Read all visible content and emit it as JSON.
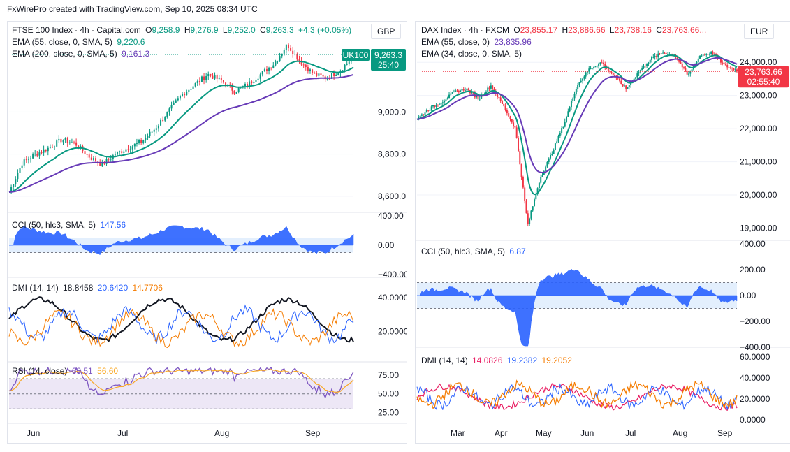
{
  "header": {
    "text": "FxWirePro created with TradingView.com, Sep 10, 2025 08:34 UTC"
  },
  "ftse": {
    "symbol": "FTSE 100 Index · 4h · Capital.com",
    "o_label": "O",
    "o": "9,258.9",
    "h_label": "H",
    "h": "9,276.9",
    "l_label": "L",
    "l": "9,252.0",
    "c_label": "C",
    "c": "9,263.3",
    "chg": "+4.3 (+0.05%)",
    "ema55_label": "EMA (55, close, 0, SMA, 5)",
    "ema55_val": "9,220.6",
    "ema200_label": "EMA (200, close, 0, SMA, 5)",
    "ema200_val": "9,161.3",
    "currency": "GBP",
    "tag_symbol": "UK100",
    "tag_price": "9,263.3",
    "tag_time": "25:40",
    "price_ticks": [
      "9,000.0",
      "8,800.0",
      "8,600.0"
    ],
    "cci_label": "CCI (50, hlc3, SMA, 5)",
    "cci_val": "147.56",
    "cci_ticks": [
      "400.00",
      "0.00",
      "−400.00"
    ],
    "dmi_label": "DMI (14, 14)",
    "dmi_v1": "18.8458",
    "dmi_v2": "20.6420",
    "dmi_v3": "14.7706",
    "dmi_ticks": [
      "40.0000",
      "20.0000"
    ],
    "rsi_label": "RSI (14, close)",
    "rsi_v1": "63.51",
    "rsi_v2": "56.60",
    "rsi_ticks": [
      "75.00",
      "50.00",
      "25.00"
    ],
    "months": [
      "Jun",
      "Jul",
      "Aug",
      "Sep"
    ]
  },
  "dax": {
    "symbol": "DAX Index · 4h · FXCM",
    "o_label": "O",
    "o": "23,855.17",
    "h_label": "H",
    "h": "23,886.66",
    "l_label": "L",
    "l": "23,738.16",
    "c_label": "C",
    "c": "23,763.66...",
    "ema55_label": "EMA (55, close, 0)",
    "ema55_val": "23,835.96",
    "ema34_label": "EMA (34, close, 0, SMA, 5)",
    "currency": "EUR",
    "tag_price": "23,763.66",
    "tag_time": "02:55:40",
    "price_ticks": [
      "24,000.00",
      "23,000.00",
      "22,000.00",
      "21,000.00",
      "20,000.00",
      "19,000.00"
    ],
    "cci_label": "CCI (50, hlc3, SMA, 5)",
    "cci_val": "6.87",
    "cci_ticks": [
      "400.00",
      "200.00",
      "0.00",
      "−200.00",
      "−400.00"
    ],
    "dmi_label": "DMI (14, 14)",
    "dmi_v1": "14.0826",
    "dmi_v2": "19.2382",
    "dmi_v3": "19.2052",
    "dmi_ticks": [
      "60.0000",
      "40.0000",
      "20.0000",
      "0.0000"
    ],
    "months": [
      "Mar",
      "Apr",
      "May",
      "Jun",
      "Jul",
      "Aug",
      "Sep"
    ]
  },
  "colors": {
    "up": "#089981",
    "down": "#f23645",
    "ema_fast": "#089981",
    "ema_slow": "#673ab7",
    "cci": "#2962ff",
    "dmi_black": "#131722",
    "dmi_blue": "#2962ff",
    "dmi_orange": "#f57c00",
    "dmi_magenta": "#e91e63",
    "rsi": "#7e57c2",
    "rsi_ma": "#f9a825"
  },
  "chart_data": [
    {
      "type": "line",
      "title": "FTSE 100 Index · 4h · Capital.com",
      "x": [
        "Jun",
        "Jul",
        "Aug",
        "Sep"
      ],
      "series": [
        {
          "name": "EMA (55, close, 0, SMA, 5)",
          "last": 9220.6
        },
        {
          "name": "EMA (200, close, 0, SMA, 5)",
          "last": 9161.3
        }
      ],
      "close_path": [
        8620,
        8760,
        8800,
        8830,
        8870,
        8850,
        8790,
        8750,
        8800,
        8830,
        8860,
        8920,
        9000,
        9080,
        9130,
        9180,
        9150,
        9100,
        9130,
        9180,
        9230,
        9320,
        9240,
        9180,
        9160,
        9200,
        9263.3
      ],
      "ylim": [
        8550,
        9330
      ]
    },
    {
      "type": "line",
      "title": "DAX Index · 4h · FXCM",
      "x": [
        "Mar",
        "Apr",
        "May",
        "Jun",
        "Jul",
        "Aug",
        "Sep"
      ],
      "series": [
        {
          "name": "EMA (55, close, 0)",
          "last": 23835.96
        },
        {
          "name": "EMA (34, close, 0, SMA, 5)"
        }
      ],
      "close_path": [
        22300,
        22600,
        22800,
        23100,
        23200,
        22900,
        23300,
        22700,
        22000,
        19100,
        20500,
        21300,
        22200,
        23300,
        23800,
        24000,
        23600,
        23200,
        23700,
        24100,
        24300,
        24200,
        23600,
        24200,
        24300,
        23900,
        23763.66
      ],
      "ylim": [
        18800,
        24700
      ]
    }
  ]
}
